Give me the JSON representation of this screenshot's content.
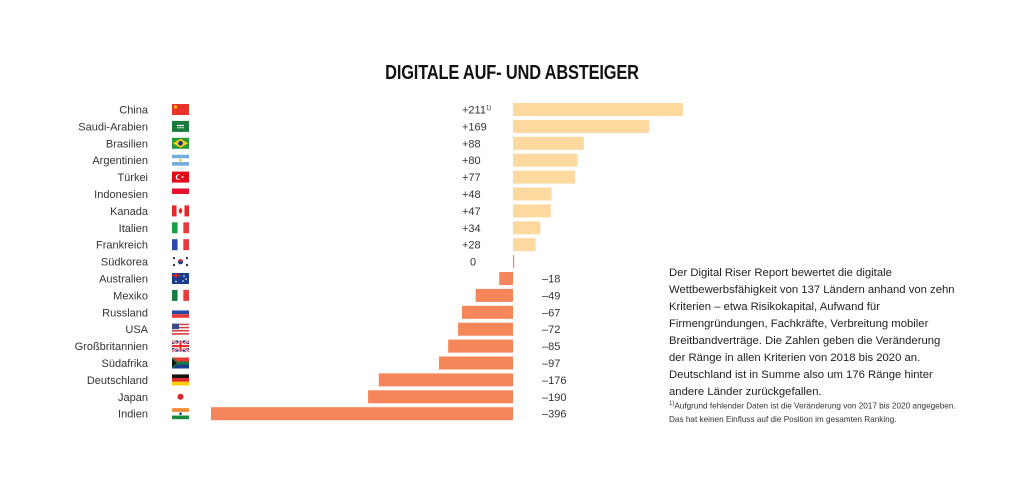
{
  "title": "DIGITALE AUF- UND ABSTEIGER",
  "description": "Der Digital Riser Report bewertet die digitale Wettbewerbs­fähigkeit von 137 Ländern anhand von zehn Kriterien – etwa Risikokapital, Aufwand für Firmengründungen, Fachkräfte, Verbreitung mobiler Breitbandverträge. Die Zahlen geben die Veränderung der Ränge in allen Kriterien von 2018 bis 2020 an. Deutschland ist in Summe also um 176 Ränge hinter andere Länder zurückgefallen.",
  "footnote": {
    "marker": "1)",
    "text": "Aufgrund fehlender Daten ist die Veränderung von 2017 bis 2020 angegeben. Das hat keinen Einfluss auf die Position im gesamten Ranking."
  },
  "colors": {
    "positive": "#fdd9a0",
    "negative": "#f4865a",
    "text": "#222222"
  },
  "chart_data": {
    "type": "bar",
    "orientation": "horizontal",
    "title": "DIGITALE AUF- UND ABSTEIGER",
    "xlabel": "",
    "ylabel": "",
    "grid": false,
    "xlim": [
      -396,
      211
    ],
    "categories": [
      "China",
      "Saudi-Arabien",
      "Brasilien",
      "Argentinien",
      "Türkei",
      "Indonesien",
      "Kanada",
      "Italien",
      "Frankreich",
      "Südkorea",
      "Australien",
      "Mexiko",
      "Russland",
      "USA",
      "Großbritannien",
      "Südafrika",
      "Deutschland",
      "Japan",
      "Indien"
    ],
    "values": [
      211,
      169,
      88,
      80,
      77,
      48,
      47,
      34,
      28,
      0,
      -18,
      -49,
      -67,
      -72,
      -85,
      -97,
      -176,
      -190,
      -396
    ],
    "value_labels": [
      "+211",
      "+169",
      "+88",
      "+80",
      "+77",
      "+48",
      "+47",
      "+34",
      "+28",
      "0",
      "–18",
      "–49",
      "–67",
      "–72",
      "–85",
      "–97",
      "–176",
      "–190",
      "–396"
    ],
    "label_footnotes": [
      "1)",
      "",
      "",
      "",
      "",
      "",
      "",
      "",
      "",
      "",
      "",
      "",
      "",
      "",
      "",
      "",
      "",
      "",
      ""
    ],
    "flags": [
      "china-flag",
      "saudi-arabia-flag",
      "brazil-flag",
      "argentina-flag",
      "turkey-flag",
      "indonesia-flag",
      "canada-flag",
      "italy-flag",
      "france-flag",
      "south-korea-flag",
      "australia-flag",
      "mexico-flag",
      "russia-flag",
      "usa-flag",
      "uk-flag",
      "south-africa-flag",
      "germany-flag",
      "japan-flag",
      "india-flag"
    ]
  }
}
